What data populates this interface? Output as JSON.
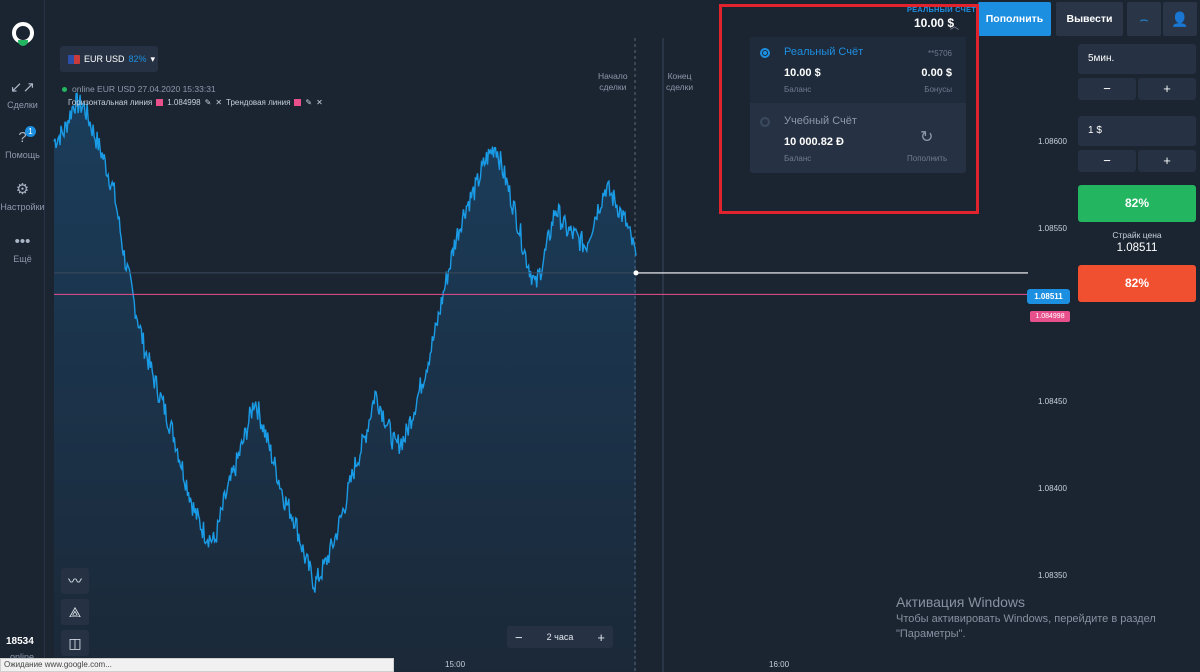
{
  "sidebar": {
    "items": [
      {
        "label": "Сделки",
        "icon": "arrows-collapse-icon"
      },
      {
        "label": "Помощь",
        "icon": "question-icon",
        "badge": "1"
      },
      {
        "label": "Настройки",
        "icon": "gear-icon"
      },
      {
        "label": "Ещё",
        "icon": "more-dots-icon"
      }
    ],
    "bottom_count": "18534",
    "bottom_status": "online"
  },
  "asset": {
    "name": "EUR USD",
    "payout": "82%",
    "status_line": "online EUR USD  27.04.2020 15:33:31"
  },
  "drawings": {
    "horizontal_label": "Горизонтальная линия",
    "horizontal_value": "1.084998",
    "trend_label": "Трендовая линия"
  },
  "deal_labels": {
    "start": "Начало\nсделки",
    "end": "Конец\nсделки"
  },
  "chart_data": {
    "type": "line",
    "title": "",
    "series_name": "EUR USD",
    "y_ticks": [
      "1.08600",
      "1.08550",
      "1.08450",
      "1.08400",
      "1.08350"
    ],
    "x_ticks": [
      "15:00",
      "16:00"
    ],
    "ylim": [
      1.08323,
      1.08634
    ],
    "current_price": "1.08511",
    "horizontal_line_price": "1.084998",
    "values": [
      1.0858,
      1.08585,
      1.086,
      1.08598,
      1.08584,
      1.0857,
      1.08553,
      1.0852,
      1.08495,
      1.08472,
      1.08455,
      1.0844,
      1.08425,
      1.08405,
      1.08386,
      1.08375,
      1.0837,
      1.08392,
      1.08408,
      1.08425,
      1.08445,
      1.08428,
      1.0841,
      1.08392,
      1.08382,
      1.08362,
      1.08348,
      1.08358,
      1.08372,
      1.0839,
      1.0841,
      1.08425,
      1.08448,
      1.08435,
      1.0842,
      1.08425,
      1.08442,
      1.0846,
      1.0848,
      1.08505,
      1.08528,
      1.08545,
      1.08555,
      1.0857,
      1.08578,
      1.0856,
      1.08542,
      1.0852,
      1.08504,
      1.08522,
      1.08545,
      1.08534,
      1.0853,
      1.08525,
      1.08542,
      1.08556,
      1.08548,
      1.08537,
      1.0852
    ]
  },
  "controls": {
    "zoom_label": "2 часа",
    "zoom_minus": "−",
    "zoom_plus": "+"
  },
  "account": {
    "header_type": "РЕАЛЬНЫЙ СЧЁТ",
    "header_balance": "10.00 $",
    "real": {
      "name": "Реальный Счёт",
      "number": "**5706",
      "balance": "10.00 $",
      "balance_label": "Баланс",
      "bonus": "0.00 $",
      "bonus_label": "Бонусы"
    },
    "demo": {
      "name": "Учебный Счёт",
      "balance": "10 000.82 Đ",
      "balance_label": "Баланс",
      "refill_label": "Пополнить"
    }
  },
  "topbar": {
    "deposit": "Пополнить",
    "withdraw": "Вывести"
  },
  "trade": {
    "time": "5мин.",
    "amount": "1 $",
    "minus": "−",
    "plus": "+",
    "call_pct": "82%",
    "put_pct": "82%",
    "strike_label": "Страйк цена",
    "strike_value": "1.08511"
  },
  "status_bar": "Ожидание www.google.com...",
  "watermark": {
    "title": "Активация Windows",
    "text": "Чтобы активировать Windows, перейдите в раздел \"Параметры\"."
  },
  "colors": {
    "accent": "#1d8fe1",
    "call": "#23b55f",
    "put": "#f04f30",
    "line": "#1a9be6",
    "horizontal_line": "#e8508b",
    "frame": "#e0232d"
  }
}
